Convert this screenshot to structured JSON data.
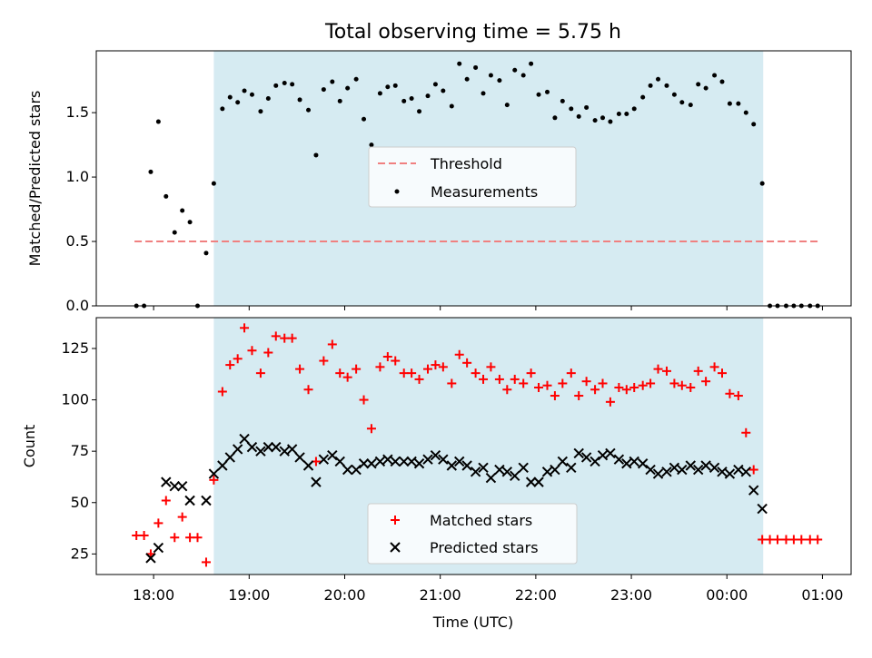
{
  "chart_data": [
    {
      "type": "scatter",
      "title": "Total observing time = 5.75 h",
      "ylabel": "Matched/Predicted stars",
      "xlabel": "",
      "x_unit": "hours since 00:00 UTC",
      "xlim": [
        17.4,
        25.3
      ],
      "ylim": [
        0,
        1.98
      ],
      "yticks": [
        0.0,
        0.5,
        1.0,
        1.5
      ],
      "ytick_labels": [
        "0.0",
        "0.5",
        "1.0",
        "1.5"
      ],
      "observing_window": [
        18.63,
        24.38
      ],
      "threshold": {
        "name": "Threshold",
        "value": 0.5,
        "x_range": [
          17.8,
          24.98
        ],
        "color": "#f08080"
      },
      "series": [
        {
          "name": "Measurements",
          "color": "#000000",
          "x": [
            17.82,
            17.9,
            17.97,
            18.05,
            18.13,
            18.22,
            18.3,
            18.38,
            18.46,
            18.55,
            18.63,
            18.72,
            18.8,
            18.88,
            18.95,
            19.03,
            19.12,
            19.2,
            19.28,
            19.37,
            19.45,
            19.53,
            19.62,
            19.7,
            19.78,
            19.87,
            19.95,
            20.03,
            20.12,
            20.2,
            20.28,
            20.37,
            20.45,
            20.53,
            20.62,
            20.7,
            20.78,
            20.87,
            20.95,
            21.03,
            21.12,
            21.2,
            21.28,
            21.37,
            21.45,
            21.53,
            21.62,
            21.7,
            21.78,
            21.87,
            21.95,
            22.03,
            22.12,
            22.2,
            22.28,
            22.37,
            22.45,
            22.53,
            22.62,
            22.7,
            22.78,
            22.87,
            22.95,
            23.03,
            23.12,
            23.2,
            23.28,
            23.37,
            23.45,
            23.53,
            23.62,
            23.7,
            23.78,
            23.87,
            23.95,
            24.03,
            24.12,
            24.2,
            24.28,
            24.37,
            24.45,
            24.53,
            24.62,
            24.7,
            24.78,
            24.87,
            24.95
          ],
          "y": [
            0.0,
            0.0,
            1.04,
            1.43,
            0.85,
            0.57,
            0.74,
            0.65,
            0.0,
            0.41,
            0.95,
            1.53,
            1.62,
            1.58,
            1.67,
            1.64,
            1.51,
            1.61,
            1.71,
            1.73,
            1.72,
            1.6,
            1.52,
            1.17,
            1.68,
            1.74,
            1.59,
            1.69,
            1.76,
            1.45,
            1.25,
            1.65,
            1.7,
            1.71,
            1.59,
            1.61,
            1.51,
            1.63,
            1.72,
            1.67,
            1.55,
            1.88,
            1.76,
            1.85,
            1.65,
            1.79,
            1.75,
            1.56,
            1.83,
            1.79,
            1.88,
            1.64,
            1.66,
            1.46,
            1.59,
            1.53,
            1.47,
            1.54,
            1.44,
            1.46,
            1.43,
            1.49,
            1.49,
            1.53,
            1.62,
            1.71,
            1.76,
            1.71,
            1.64,
            1.58,
            1.56,
            1.72,
            1.69,
            1.79,
            1.74,
            1.57,
            1.57,
            1.5,
            1.41,
            0.95,
            0.0,
            0.0,
            0.0,
            0.0,
            0.0,
            0.0,
            0.0
          ]
        }
      ],
      "legend": {
        "placement": "center",
        "entries": [
          "Threshold",
          "Measurements"
        ]
      }
    },
    {
      "type": "scatter",
      "title": "",
      "ylabel": "Count",
      "xlabel": "Time (UTC)",
      "xlim": [
        17.4,
        25.3
      ],
      "ylim": [
        15,
        140
      ],
      "yticks": [
        25,
        50,
        75,
        100,
        125
      ],
      "xticks": [
        18,
        19,
        20,
        21,
        22,
        23,
        24,
        25
      ],
      "xtick_labels": [
        "18:00",
        "19:00",
        "20:00",
        "21:00",
        "22:00",
        "23:00",
        "00:00",
        "01:00"
      ],
      "observing_window": [
        18.63,
        24.38
      ],
      "series": [
        {
          "name": "Matched stars",
          "color": "#ff0000",
          "marker": "+",
          "x": [
            17.82,
            17.9,
            17.97,
            18.05,
            18.13,
            18.22,
            18.3,
            18.38,
            18.46,
            18.55,
            18.63,
            18.72,
            18.8,
            18.88,
            18.95,
            19.03,
            19.12,
            19.2,
            19.28,
            19.37,
            19.45,
            19.53,
            19.62,
            19.7,
            19.78,
            19.87,
            19.95,
            20.03,
            20.12,
            20.2,
            20.28,
            20.37,
            20.45,
            20.53,
            20.62,
            20.7,
            20.78,
            20.87,
            20.95,
            21.03,
            21.12,
            21.2,
            21.28,
            21.37,
            21.45,
            21.53,
            21.62,
            21.7,
            21.78,
            21.87,
            21.95,
            22.03,
            22.12,
            22.2,
            22.28,
            22.37,
            22.45,
            22.53,
            22.62,
            22.7,
            22.78,
            22.87,
            22.95,
            23.03,
            23.12,
            23.2,
            23.28,
            23.37,
            23.45,
            23.53,
            23.62,
            23.7,
            23.78,
            23.87,
            23.95,
            24.03,
            24.12,
            24.2,
            24.28,
            24.37,
            24.45,
            24.53,
            24.62,
            24.7,
            24.78,
            24.87,
            24.95
          ],
          "y": [
            34,
            34,
            25,
            40,
            51,
            33,
            43,
            33,
            33,
            21,
            61,
            104,
            117,
            120,
            135,
            124,
            113,
            123,
            131,
            130,
            130,
            115,
            105,
            70,
            119,
            127,
            113,
            111,
            115,
            100,
            86,
            116,
            121,
            119,
            113,
            113,
            110,
            115,
            117,
            116,
            108,
            122,
            118,
            113,
            110,
            116,
            110,
            105,
            110,
            108,
            113,
            106,
            107,
            102,
            108,
            113,
            102,
            109,
            105,
            108,
            99,
            106,
            105,
            106,
            107,
            108,
            115,
            114,
            108,
            107,
            106,
            114,
            109,
            116,
            113,
            103,
            102,
            84,
            66,
            32,
            32,
            32,
            32,
            32,
            32,
            32,
            32
          ]
        },
        {
          "name": "Predicted stars",
          "color": "#000000",
          "marker": "x",
          "x": [
            17.97,
            18.05,
            18.13,
            18.22,
            18.3,
            18.38,
            18.55,
            18.63,
            18.72,
            18.8,
            18.88,
            18.95,
            19.03,
            19.12,
            19.2,
            19.28,
            19.37,
            19.45,
            19.53,
            19.62,
            19.7,
            19.78,
            19.87,
            19.95,
            20.03,
            20.12,
            20.2,
            20.28,
            20.37,
            20.45,
            20.53,
            20.62,
            20.7,
            20.78,
            20.87,
            20.95,
            21.03,
            21.12,
            21.2,
            21.28,
            21.37,
            21.45,
            21.53,
            21.62,
            21.7,
            21.78,
            21.87,
            21.95,
            22.03,
            22.12,
            22.2,
            22.28,
            22.37,
            22.45,
            22.53,
            22.62,
            22.7,
            22.78,
            22.87,
            22.95,
            23.03,
            23.12,
            23.2,
            23.28,
            23.37,
            23.45,
            23.53,
            23.62,
            23.7,
            23.78,
            23.87,
            23.95,
            24.03,
            24.12,
            24.2,
            24.28,
            24.37
          ],
          "y": [
            23,
            28,
            60,
            58,
            58,
            51,
            51,
            64,
            68,
            72,
            76,
            81,
            77,
            75,
            77,
            77,
            75,
            76,
            72,
            68,
            60,
            71,
            73,
            70,
            66,
            66,
            69,
            69,
            70,
            71,
            70,
            70,
            70,
            69,
            71,
            73,
            71,
            68,
            70,
            68,
            65,
            67,
            62,
            66,
            65,
            63,
            67,
            60,
            60,
            65,
            66,
            70,
            67,
            74,
            72,
            70,
            73,
            74,
            71,
            69,
            70,
            69,
            66,
            64,
            65,
            67,
            66,
            68,
            66,
            68,
            67,
            65,
            64,
            66,
            65,
            56,
            47
          ]
        }
      ],
      "legend": {
        "placement": "lower center",
        "entries": [
          "Matched stars",
          "Predicted stars"
        ]
      }
    }
  ]
}
